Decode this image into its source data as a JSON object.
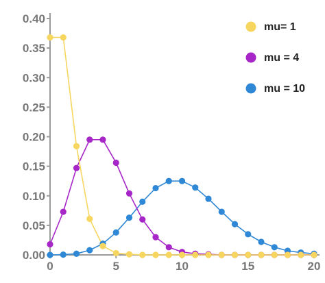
{
  "chart_data": {
    "type": "line",
    "title": "",
    "xlabel": "",
    "ylabel": "",
    "xlim": [
      0,
      20
    ],
    "ylim": [
      0,
      0.4
    ],
    "x_ticks": [
      0,
      5,
      10,
      15,
      20
    ],
    "y_ticks": [
      0.0,
      0.05,
      0.1,
      0.15,
      0.2,
      0.25,
      0.3,
      0.35,
      0.4
    ],
    "x_tick_labels": [
      "0",
      "5",
      "10",
      "15",
      "20"
    ],
    "y_tick_labels": [
      "0.00",
      "0.05",
      "0.10",
      "0.15",
      "0.20",
      "0.25",
      "0.30",
      "0.35",
      "0.40"
    ],
    "grid": false,
    "legend_position": "top-right",
    "x": [
      0,
      1,
      2,
      3,
      4,
      5,
      6,
      7,
      8,
      9,
      10,
      11,
      12,
      13,
      14,
      15,
      16,
      17,
      18,
      19,
      20
    ],
    "series": [
      {
        "name": "mu= 1",
        "color": "#f7d65f",
        "values": [
          0.368,
          0.368,
          0.184,
          0.061,
          0.015,
          0.003,
          0.001,
          0.0,
          0.0,
          0.0,
          0.0,
          0.0,
          0.0,
          0.0,
          0.0,
          0.0,
          0.0,
          0.0,
          0.0,
          0.0,
          0.0
        ]
      },
      {
        "name": "mu = 4",
        "color": "#a626c7",
        "values": [
          0.018,
          0.073,
          0.147,
          0.195,
          0.195,
          0.156,
          0.104,
          0.06,
          0.03,
          0.013,
          0.005,
          0.002,
          0.001,
          0.0,
          0.0,
          0.0,
          0.0,
          0.0,
          0.0,
          0.0,
          0.0
        ]
      },
      {
        "name": "mu = 10",
        "color": "#2f88d6",
        "values": [
          0.0,
          0.0005,
          0.002,
          0.008,
          0.019,
          0.038,
          0.063,
          0.09,
          0.113,
          0.125,
          0.125,
          0.114,
          0.095,
          0.073,
          0.052,
          0.035,
          0.022,
          0.013,
          0.007,
          0.004,
          0.002
        ]
      }
    ]
  }
}
